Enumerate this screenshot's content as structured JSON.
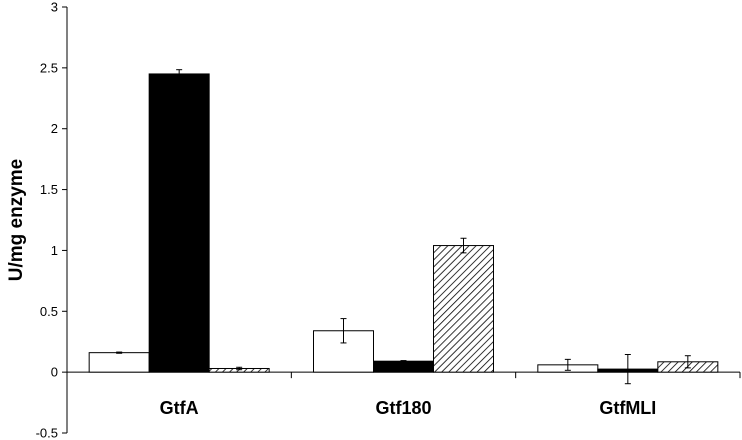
{
  "chart_data": {
    "type": "bar",
    "title": "",
    "xlabel": "",
    "ylabel": "U/mg enzyme",
    "ylim": [
      -0.5,
      3
    ],
    "yticks": [
      "-0.5",
      "0",
      "0.5",
      "1",
      "1.5",
      "2",
      "2.5",
      "3"
    ],
    "grid": false,
    "legend": "none",
    "categories": [
      "GtfA",
      "Gtf180",
      "GtfMLI"
    ],
    "series": [
      {
        "fill": "white",
        "values": [
          0.16,
          0.34,
          0.06
        ],
        "errors": [
          0.005,
          0.1,
          0.045
        ]
      },
      {
        "fill": "black",
        "values": [
          2.45,
          0.09,
          0.025
        ],
        "errors": [
          0.035,
          0.005,
          0.12
        ]
      },
      {
        "fill": "hatched",
        "values": [
          0.03,
          1.04,
          0.085
        ],
        "errors": [
          0.01,
          0.06,
          0.05
        ]
      }
    ]
  }
}
